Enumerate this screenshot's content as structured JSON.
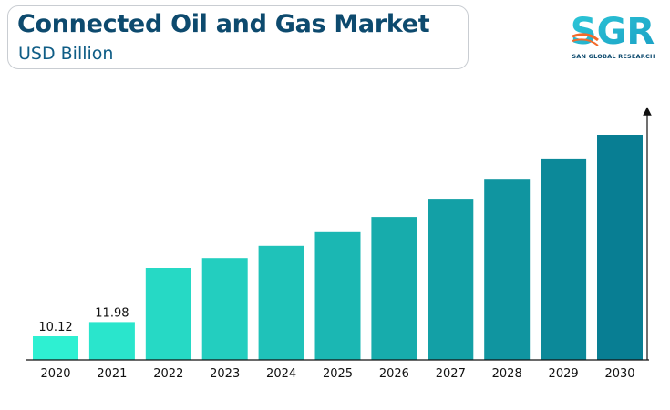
{
  "header": {
    "title": "Connected Oil and Gas Market",
    "subtitle": "USD Billion"
  },
  "logo": {
    "mark_text": "SGR",
    "name": "SAN GLOBAL RESEARCH"
  },
  "colors": {
    "bar_start": "#2ef0d2",
    "bar_end": "#087e93",
    "title": "#0d4a6e",
    "logo_accent": "#f26a2b"
  },
  "chart_data": {
    "type": "bar",
    "title": "Connected Oil and Gas Market",
    "ylabel": "USD Billion",
    "categories": [
      "2020",
      "2021",
      "2022",
      "2023",
      "2024",
      "2025",
      "2026",
      "2027",
      "2028",
      "2029",
      "2030"
    ],
    "values": [
      10.12,
      11.98,
      19.1,
      20.4,
      22.0,
      23.8,
      25.8,
      28.2,
      30.7,
      33.5,
      36.6
    ],
    "data_labels": [
      "10.12",
      "11.98",
      "",
      "",
      "",
      "",
      "",
      "",
      "",
      "",
      ""
    ],
    "ylim": [
      7.0,
      38.0
    ],
    "grid": false,
    "legend": "none"
  }
}
